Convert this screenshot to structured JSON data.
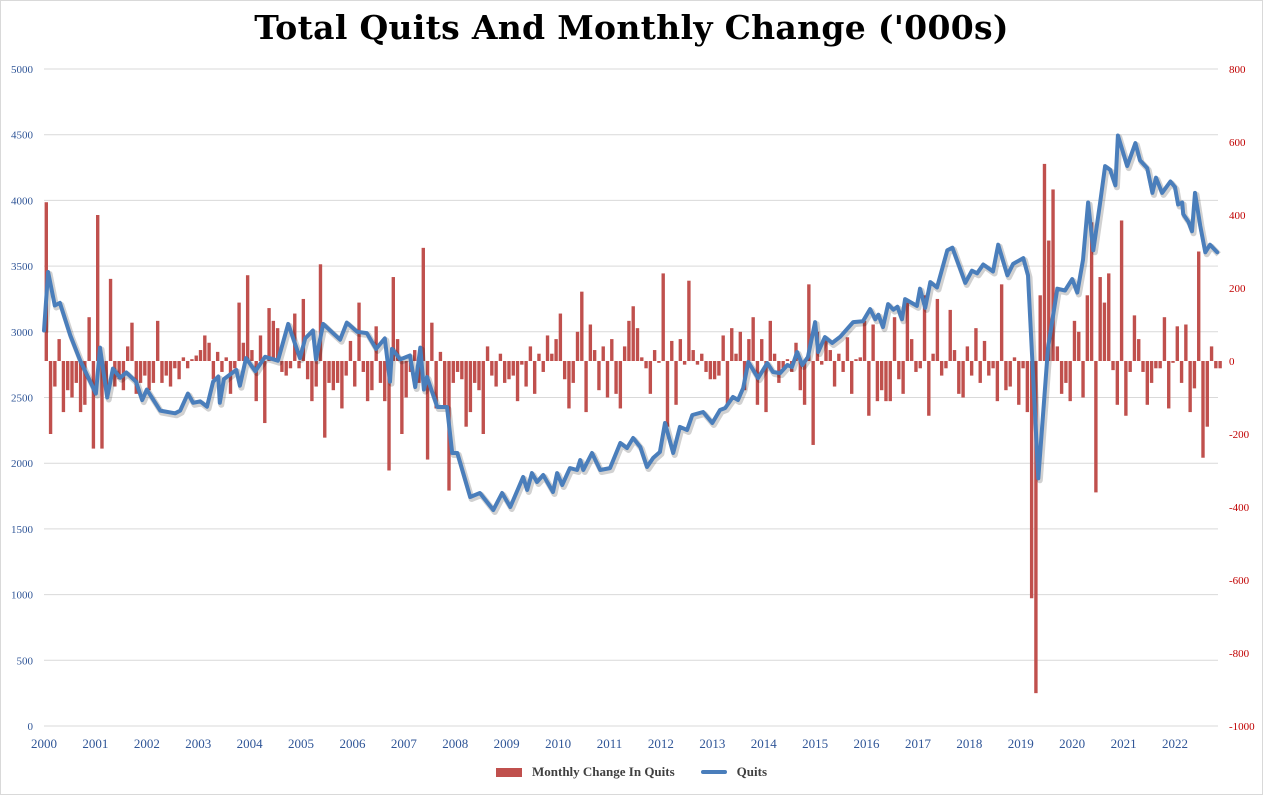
{
  "chart_data": {
    "type": "bar+line",
    "title": "Total Quits And Monthly Change ('000s)",
    "x_tick_labels": [
      "2000",
      "2001",
      "2002",
      "2003",
      "2004",
      "2005",
      "2006",
      "2007",
      "2008",
      "2009",
      "2010",
      "2011",
      "2012",
      "2013",
      "2014",
      "2015",
      "2016",
      "2017",
      "2018",
      "2019",
      "2020",
      "2021",
      "2022"
    ],
    "y_left": {
      "ticks": [
        "0",
        "500",
        "1000",
        "1500",
        "2000",
        "2500",
        "3000",
        "3500",
        "4000",
        "4500",
        "5000"
      ],
      "range": [
        0,
        5000
      ],
      "color": "#2f5597"
    },
    "y_right": {
      "ticks": [
        "-1000",
        "-800",
        "-600",
        "-400",
        "-200",
        "0",
        "200",
        "400",
        "600",
        "800"
      ],
      "range": [
        -1000,
        800
      ],
      "color": "#c00000"
    },
    "grid": true,
    "legend": {
      "position": "bottom",
      "entries": [
        "Monthly Change In Quits",
        "Quits"
      ]
    },
    "series": [
      {
        "name": "Monthly Change In Quits",
        "type": "bar",
        "axis": "right",
        "color": "#c0504d",
        "start_year": 2000,
        "step": "monthly",
        "values": [
          435,
          -200,
          -70,
          60,
          -140,
          -80,
          -100,
          -60,
          -140,
          -120,
          120,
          -240,
          400,
          -240,
          -70,
          225,
          -70,
          -50,
          -80,
          40,
          105,
          -90,
          -60,
          -40,
          -80,
          -60,
          110,
          -60,
          -40,
          -70,
          -20,
          -50,
          10,
          -20,
          5,
          15,
          30,
          70,
          50,
          -50,
          25,
          -30,
          10,
          -90,
          -20,
          160,
          50,
          235,
          30,
          -110,
          70,
          -170,
          145,
          110,
          90,
          -30,
          -40,
          -20,
          130,
          -20,
          170,
          -50,
          -110,
          -70,
          265,
          -210,
          -60,
          -80,
          -60,
          -130,
          -40,
          55,
          -70,
          160,
          -30,
          -110,
          -80,
          95,
          -60,
          -110,
          -300,
          230,
          60,
          -200,
          -100,
          -30,
          30,
          -60,
          310,
          -270,
          105,
          -130,
          25,
          -130,
          -355,
          -60,
          -30,
          -50,
          -180,
          -140,
          -60,
          -80,
          -200,
          40,
          -40,
          -70,
          20,
          -60,
          -50,
          -40,
          -110,
          -10,
          -70,
          40,
          -90,
          20,
          -30,
          70,
          20,
          60,
          130,
          -50,
          -130,
          -60,
          80,
          190,
          -140,
          100,
          30,
          -80,
          40,
          -100,
          60,
          -90,
          -130,
          40,
          110,
          150,
          90,
          10,
          -20,
          -90,
          30,
          -5,
          240,
          -180,
          55,
          -120,
          60,
          -10,
          220,
          30,
          -10,
          20,
          -30,
          -50,
          -50,
          -40,
          70,
          -120,
          90,
          20,
          80,
          -80,
          60,
          120,
          -120,
          60,
          -140,
          110,
          20,
          -60,
          -20,
          5,
          -30,
          50,
          -80,
          -120,
          210,
          -230,
          80,
          -10,
          60,
          30,
          -70,
          20,
          -30,
          65,
          -90,
          5,
          10,
          110,
          -150,
          100,
          -110,
          -80,
          -110,
          -110,
          120,
          -50,
          -90,
          160,
          60,
          -30,
          -20,
          180,
          -150,
          20,
          170,
          -40,
          -20,
          140,
          30,
          -90,
          -100,
          40,
          -40,
          90,
          -60,
          55,
          -40,
          -20,
          -110,
          210,
          -80,
          -70,
          10,
          -120,
          -20,
          -140,
          -650,
          -910,
          180,
          540,
          330,
          470,
          40,
          -90,
          -60,
          -110,
          110,
          80,
          -100,
          180,
          380,
          -360,
          230,
          160,
          240,
          -25,
          -120,
          385,
          -150,
          -30,
          125,
          60,
          -30,
          -120,
          -60,
          -20,
          -20,
          120,
          -130,
          -5,
          95,
          -60,
          100,
          -140,
          -75,
          300,
          -265,
          -180,
          40,
          -20,
          -20
        ]
      },
      {
        "name": "Quits",
        "type": "line",
        "axis": "left",
        "color": "#4a7ebb",
        "points": [
          [
            2000.0,
            3010
          ],
          [
            2000.08,
            3455
          ],
          [
            2000.21,
            3200
          ],
          [
            2000.31,
            3220
          ],
          [
            2000.51,
            2975
          ],
          [
            2000.7,
            2785
          ],
          [
            2001.01,
            2530
          ],
          [
            2001.09,
            2880
          ],
          [
            2001.23,
            2500
          ],
          [
            2001.34,
            2720
          ],
          [
            2001.48,
            2650
          ],
          [
            2001.6,
            2690
          ],
          [
            2001.79,
            2620
          ],
          [
            2001.91,
            2480
          ],
          [
            2002.0,
            2560
          ],
          [
            2002.26,
            2400
          ],
          [
            2002.55,
            2380
          ],
          [
            2002.65,
            2400
          ],
          [
            2002.8,
            2530
          ],
          [
            2002.9,
            2460
          ],
          [
            2003.04,
            2470
          ],
          [
            2003.17,
            2430
          ],
          [
            2003.29,
            2620
          ],
          [
            2003.39,
            2660
          ],
          [
            2003.42,
            2460
          ],
          [
            2003.5,
            2640
          ],
          [
            2003.74,
            2710
          ],
          [
            2003.81,
            2590
          ],
          [
            2003.93,
            2800
          ],
          [
            2004.11,
            2700
          ],
          [
            2004.3,
            2810
          ],
          [
            2004.55,
            2780
          ],
          [
            2004.75,
            3060
          ],
          [
            2004.98,
            2800
          ],
          [
            2005.08,
            2950
          ],
          [
            2005.23,
            3010
          ],
          [
            2005.29,
            2790
          ],
          [
            2005.43,
            3060
          ],
          [
            2005.62,
            2990
          ],
          [
            2005.76,
            2940
          ],
          [
            2005.89,
            3070
          ],
          [
            2006.09,
            3000
          ],
          [
            2006.28,
            2990
          ],
          [
            2006.46,
            2870
          ],
          [
            2006.63,
            2950
          ],
          [
            2006.73,
            2620
          ],
          [
            2006.77,
            2870
          ],
          [
            2006.93,
            2790
          ],
          [
            2007.12,
            2820
          ],
          [
            2007.22,
            2580
          ],
          [
            2007.32,
            2880
          ],
          [
            2007.39,
            2560
          ],
          [
            2007.45,
            2656
          ],
          [
            2007.65,
            2428
          ],
          [
            2007.84,
            2428
          ],
          [
            2007.94,
            2078
          ],
          [
            2008.04,
            2078
          ],
          [
            2008.29,
            1743
          ],
          [
            2008.48,
            1773
          ],
          [
            2008.74,
            1644
          ],
          [
            2008.91,
            1773
          ],
          [
            2009.07,
            1667
          ],
          [
            2009.32,
            1895
          ],
          [
            2009.4,
            1796
          ],
          [
            2009.49,
            1925
          ],
          [
            2009.59,
            1857
          ],
          [
            2009.71,
            1910
          ],
          [
            2009.9,
            1781
          ],
          [
            2009.98,
            1925
          ],
          [
            2010.08,
            1834
          ],
          [
            2010.23,
            1963
          ],
          [
            2010.37,
            1948
          ],
          [
            2010.43,
            2024
          ],
          [
            2010.49,
            1948
          ],
          [
            2010.66,
            2078
          ],
          [
            2010.82,
            1948
          ],
          [
            2011.01,
            1963
          ],
          [
            2011.21,
            2154
          ],
          [
            2011.34,
            2116
          ],
          [
            2011.46,
            2192
          ],
          [
            2011.6,
            2123
          ],
          [
            2011.73,
            1971
          ],
          [
            2011.85,
            2040
          ],
          [
            2011.98,
            2085
          ],
          [
            2012.08,
            2306
          ],
          [
            2012.24,
            2078
          ],
          [
            2012.37,
            2276
          ],
          [
            2012.51,
            2253
          ],
          [
            2012.61,
            2367
          ],
          [
            2012.82,
            2390
          ],
          [
            2013.0,
            2306
          ],
          [
            2013.15,
            2405
          ],
          [
            2013.25,
            2420
          ],
          [
            2013.4,
            2504
          ],
          [
            2013.5,
            2481
          ],
          [
            2013.6,
            2572
          ],
          [
            2013.7,
            2770
          ],
          [
            2013.89,
            2648
          ],
          [
            2014.07,
            2762
          ],
          [
            2014.18,
            2694
          ],
          [
            2014.32,
            2686
          ],
          [
            2014.46,
            2747
          ],
          [
            2014.55,
            2732
          ],
          [
            2014.65,
            2846
          ],
          [
            2014.75,
            2747
          ],
          [
            2014.86,
            2808
          ],
          [
            2015.0,
            3074
          ],
          [
            2015.06,
            2846
          ],
          [
            2015.19,
            2960
          ],
          [
            2015.33,
            2915
          ],
          [
            2015.49,
            2963
          ],
          [
            2015.74,
            3074
          ],
          [
            2015.93,
            3080
          ],
          [
            2016.07,
            3173
          ],
          [
            2016.17,
            3095
          ],
          [
            2016.23,
            3130
          ],
          [
            2016.32,
            3036
          ],
          [
            2016.42,
            3211
          ],
          [
            2016.52,
            3168
          ],
          [
            2016.6,
            3191
          ],
          [
            2016.69,
            3095
          ],
          [
            2016.75,
            3249
          ],
          [
            2016.98,
            3197
          ],
          [
            2017.04,
            3328
          ],
          [
            2017.14,
            3182
          ],
          [
            2017.24,
            3378
          ],
          [
            2017.37,
            3337
          ],
          [
            2017.57,
            3620
          ],
          [
            2017.67,
            3640
          ],
          [
            2017.92,
            3372
          ],
          [
            2018.05,
            3465
          ],
          [
            2018.15,
            3445
          ],
          [
            2018.27,
            3512
          ],
          [
            2018.46,
            3459
          ],
          [
            2018.56,
            3663
          ],
          [
            2018.74,
            3430
          ],
          [
            2018.85,
            3517
          ],
          [
            2019.05,
            3561
          ],
          [
            2019.14,
            3430
          ],
          [
            2019.34,
            1885
          ],
          [
            2019.53,
            2876
          ],
          [
            2019.71,
            3328
          ],
          [
            2019.86,
            3314
          ],
          [
            2020.0,
            3401
          ],
          [
            2020.1,
            3299
          ],
          [
            2020.21,
            3547
          ],
          [
            2020.31,
            3984
          ],
          [
            2020.41,
            3620
          ],
          [
            2020.54,
            3970
          ],
          [
            2020.64,
            4261
          ],
          [
            2020.74,
            4232
          ],
          [
            2020.84,
            4115
          ],
          [
            2020.89,
            4494
          ],
          [
            2021.07,
            4261
          ],
          [
            2021.23,
            4436
          ],
          [
            2021.32,
            4305
          ],
          [
            2021.46,
            4246
          ],
          [
            2021.56,
            4057
          ],
          [
            2021.63,
            4173
          ],
          [
            2021.75,
            4057
          ],
          [
            2021.91,
            4144
          ],
          [
            2022.0,
            4101
          ],
          [
            2022.06,
            3969
          ],
          [
            2022.14,
            3984
          ],
          [
            2022.16,
            3896
          ],
          [
            2022.26,
            3838
          ],
          [
            2022.33,
            3765
          ],
          [
            2022.39,
            4057
          ],
          [
            2022.49,
            3808
          ],
          [
            2022.59,
            3605
          ],
          [
            2022.68,
            3663
          ],
          [
            2022.82,
            3605
          ]
        ]
      }
    ]
  }
}
